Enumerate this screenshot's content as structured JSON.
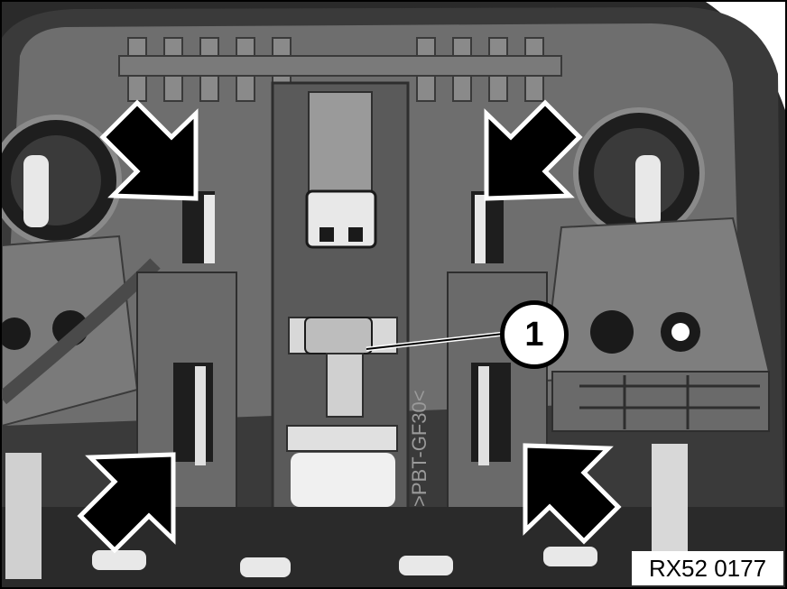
{
  "figure": {
    "callout_number": "1",
    "reference_code": "RX52 0177",
    "molded_marking": ">PBT-GF30<"
  },
  "colors": {
    "background": "#2a2a2a",
    "plastic_housing": "#6e6e6e",
    "plastic_dark": "#4a4a4a",
    "highlight": "#d8d8d8",
    "arrow_fill": "#000000",
    "arrow_outline": "#ffffff"
  }
}
